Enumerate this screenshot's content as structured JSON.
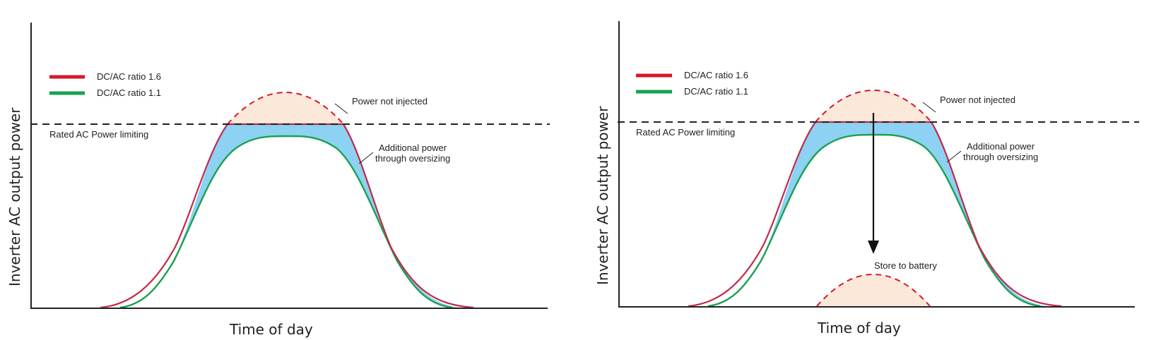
{
  "panels": [
    {
      "id": "left",
      "legend": [
        {
          "label": "DC/AC ratio 1.6",
          "color": "#d7182a"
        },
        {
          "label": "DC/AC ratio 1.1",
          "color": "#17a150"
        }
      ],
      "annotations": {
        "rated_limit": "Rated AC Power limiting",
        "not_injected": "Power not injected",
        "oversizing_line1": "Additional power",
        "oversizing_line2": "through oversizing"
      },
      "xlabel": "Time of day",
      "ylabel": "Inverter AC output power"
    },
    {
      "id": "right",
      "legend": [
        {
          "label": "DC/AC ratio 1.6",
          "color": "#d7182a"
        },
        {
          "label": "DC/AC ratio 1.1",
          "color": "#17a150"
        }
      ],
      "annotations": {
        "rated_limit": "Rated AC Power limiting",
        "not_injected": "Power not injected",
        "oversizing_line1": "Additional power",
        "oversizing_line2": "through oversizing",
        "store": "Store to battery"
      },
      "xlabel": "Time of day",
      "ylabel": "Inverter AC output power"
    }
  ],
  "colors": {
    "clipped_fill": "#fbe8d8",
    "oversize_fill": "#8dd1f3",
    "limit_line": "#222222",
    "axis": "#222222"
  }
}
